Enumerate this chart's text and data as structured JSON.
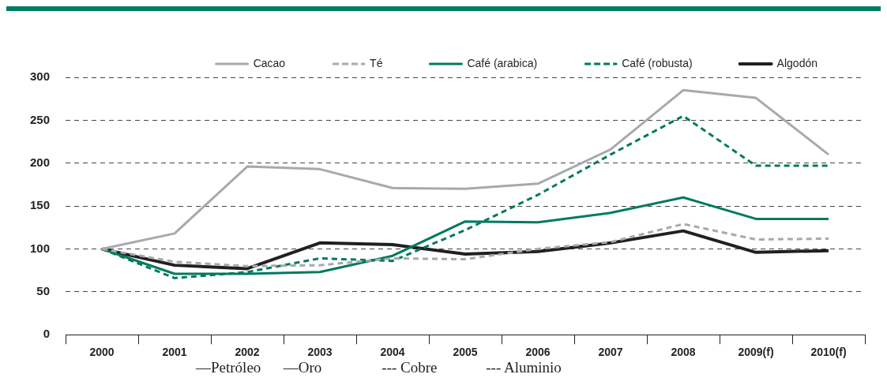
{
  "chart_data": {
    "type": "line",
    "categories": [
      "2000",
      "2001",
      "2002",
      "2003",
      "2004",
      "2005",
      "2006",
      "2007",
      "2008",
      "2009(f)",
      "2010(f)"
    ],
    "series": [
      {
        "name": "Cacao",
        "color": "#a7a9ac",
        "line_style": "solid",
        "values": [
          100,
          118,
          196,
          193,
          171,
          170,
          176,
          216,
          285,
          276,
          210
        ]
      },
      {
        "name": "Té",
        "color": "#a7a9ac",
        "line_style": "dashed",
        "values": [
          100,
          85,
          80,
          81,
          89,
          88,
          100,
          108,
          129,
          111,
          112
        ]
      },
      {
        "name": "Café (arabica)",
        "color": "#007a5e",
        "line_style": "solid",
        "values": [
          100,
          71,
          71,
          73,
          92,
          132,
          131,
          142,
          160,
          135,
          135
        ]
      },
      {
        "name": "Café (robusta)",
        "color": "#007a5e",
        "line_style": "dashed",
        "values": [
          100,
          66,
          73,
          89,
          86,
          122,
          163,
          210,
          255,
          197,
          197
        ]
      },
      {
        "name": "Algodón",
        "color": "#231f20",
        "line_style": "solid",
        "values": [
          100,
          81,
          77,
          107,
          105,
          94,
          97,
          107,
          121,
          96,
          98
        ]
      }
    ],
    "ylim": [
      0,
      300
    ],
    "yticks": [
      0,
      50,
      100,
      150,
      200,
      250,
      300
    ],
    "grid": "y",
    "legend": "top",
    "marker": "none",
    "annotations": [
      "—Petróleo      —Oro                --- Cobre             --- Aluminio"
    ]
  }
}
